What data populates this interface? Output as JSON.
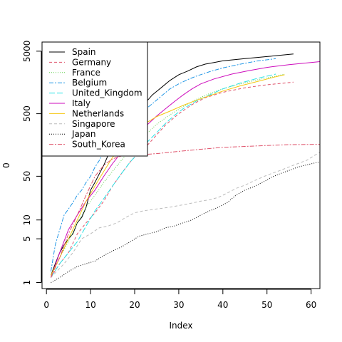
{
  "chart_data": {
    "type": "line",
    "title": "",
    "xlabel": "Index",
    "ylabel": "0",
    "y_scale": "log",
    "xlim": [
      -1,
      62
    ],
    "ylim": [
      0.8,
      7000
    ],
    "x_ticks": [
      0,
      10,
      20,
      30,
      40,
      50,
      60
    ],
    "x_tick_labels": [
      "0",
      "10",
      "20",
      "30",
      "40",
      "50",
      "60"
    ],
    "y_ticks": [
      1,
      5,
      10,
      50,
      500,
      5000
    ],
    "y_tick_labels": [
      "1",
      "5",
      "10",
      "50",
      "500",
      "5000"
    ],
    "legend_position": "top-left",
    "grid": false,
    "series": [
      {
        "name": "Spain",
        "color": "#000000",
        "dash": "",
        "points": [
          [
            1,
            1.3
          ],
          [
            2,
            2
          ],
          [
            3,
            3
          ],
          [
            4,
            4
          ],
          [
            5,
            5
          ],
          [
            6,
            6
          ],
          [
            7,
            9
          ],
          [
            8,
            11
          ],
          [
            9,
            16
          ],
          [
            10,
            30
          ],
          [
            11,
            40
          ],
          [
            12,
            55
          ],
          [
            13,
            75
          ],
          [
            14,
            110
          ],
          [
            15,
            165
          ],
          [
            16,
            230
          ],
          [
            17,
            300
          ],
          [
            18,
            380
          ],
          [
            19,
            470
          ],
          [
            20,
            560
          ],
          [
            21,
            650
          ],
          [
            22,
            740
          ],
          [
            23,
            830
          ],
          [
            24,
            1000
          ],
          [
            26,
            1300
          ],
          [
            28,
            1700
          ],
          [
            30,
            2100
          ],
          [
            32,
            2400
          ],
          [
            34,
            2800
          ],
          [
            36,
            3100
          ],
          [
            38,
            3300
          ],
          [
            40,
            3500
          ],
          [
            45,
            3800
          ],
          [
            50,
            4100
          ],
          [
            56,
            4500
          ]
        ]
      },
      {
        "name": "Germany",
        "color": "#df536b",
        "dash": "4,3",
        "points": [
          [
            1,
            1.2
          ],
          [
            3,
            2
          ],
          [
            5,
            3
          ],
          [
            7,
            6
          ],
          [
            9,
            9
          ],
          [
            11,
            13
          ],
          [
            13,
            20
          ],
          [
            15,
            35
          ],
          [
            17,
            55
          ],
          [
            19,
            85
          ],
          [
            21,
            120
          ],
          [
            23,
            160
          ],
          [
            25,
            230
          ],
          [
            27,
            330
          ],
          [
            30,
            500
          ],
          [
            33,
            700
          ],
          [
            36,
            900
          ],
          [
            40,
            1100
          ],
          [
            45,
            1300
          ],
          [
            50,
            1450
          ],
          [
            56,
            1600
          ]
        ]
      },
      {
        "name": "France",
        "color": "#61d04f",
        "dash": "1,2",
        "points": [
          [
            1,
            1.3
          ],
          [
            3,
            2.5
          ],
          [
            5,
            4.5
          ],
          [
            7,
            9
          ],
          [
            9,
            16
          ],
          [
            11,
            25
          ],
          [
            13,
            40
          ],
          [
            15,
            60
          ],
          [
            17,
            90
          ],
          [
            19,
            130
          ],
          [
            21,
            180
          ],
          [
            23,
            250
          ],
          [
            25,
            340
          ],
          [
            28,
            480
          ],
          [
            31,
            650
          ],
          [
            34,
            850
          ],
          [
            37,
            1050
          ],
          [
            40,
            1250
          ],
          [
            44,
            1500
          ],
          [
            48,
            1750
          ],
          [
            52,
            2000
          ],
          [
            54,
            2150
          ]
        ]
      },
      {
        "name": "Belgium",
        "color": "#2297e6",
        "dash": "6,2,2,2",
        "points": [
          [
            1,
            1.5
          ],
          [
            2,
            4
          ],
          [
            3,
            7
          ],
          [
            4,
            12
          ],
          [
            5,
            15
          ],
          [
            6,
            19
          ],
          [
            7,
            25
          ],
          [
            8,
            30
          ],
          [
            9,
            40
          ],
          [
            10,
            50
          ],
          [
            11,
            70
          ],
          [
            12,
            90
          ],
          [
            13,
            120
          ],
          [
            14,
            150
          ],
          [
            15,
            200
          ],
          [
            16,
            240
          ],
          [
            18,
            330
          ],
          [
            20,
            430
          ],
          [
            22,
            560
          ],
          [
            24,
            720
          ],
          [
            26,
            950
          ],
          [
            28,
            1250
          ],
          [
            30,
            1500
          ],
          [
            32,
            1750
          ],
          [
            34,
            2000
          ],
          [
            37,
            2350
          ],
          [
            40,
            2700
          ],
          [
            44,
            3100
          ],
          [
            48,
            3500
          ],
          [
            52,
            3800
          ]
        ]
      },
      {
        "name": "United_Kingdom",
        "color": "#28e2e5",
        "dash": "8,3",
        "points": [
          [
            1,
            1.2
          ],
          [
            3,
            2
          ],
          [
            5,
            3
          ],
          [
            7,
            4.5
          ],
          [
            9,
            8
          ],
          [
            11,
            14
          ],
          [
            13,
            22
          ],
          [
            15,
            35
          ],
          [
            17,
            55
          ],
          [
            19,
            85
          ],
          [
            21,
            120
          ],
          [
            23,
            180
          ],
          [
            25,
            250
          ],
          [
            27,
            350
          ],
          [
            29,
            470
          ],
          [
            31,
            600
          ],
          [
            34,
            800
          ],
          [
            37,
            1000
          ],
          [
            40,
            1250
          ],
          [
            44,
            1550
          ],
          [
            48,
            1850
          ],
          [
            52,
            2150
          ]
        ]
      },
      {
        "name": "Italy",
        "color": "#cd0bbc",
        "dash": "",
        "points": [
          [
            1,
            1.2
          ],
          [
            3,
            3
          ],
          [
            5,
            7
          ],
          [
            7,
            12
          ],
          [
            9,
            20
          ],
          [
            11,
            30
          ],
          [
            13,
            50
          ],
          [
            15,
            80
          ],
          [
            17,
            120
          ],
          [
            19,
            180
          ],
          [
            21,
            250
          ],
          [
            23,
            340
          ],
          [
            25,
            460
          ],
          [
            27,
            600
          ],
          [
            29,
            780
          ],
          [
            31,
            1000
          ],
          [
            33,
            1250
          ],
          [
            35,
            1500
          ],
          [
            38,
            1800
          ],
          [
            42,
            2150
          ],
          [
            46,
            2450
          ],
          [
            50,
            2750
          ],
          [
            55,
            3050
          ],
          [
            62,
            3400
          ]
        ]
      },
      {
        "name": "Netherlands",
        "color": "#f5c710",
        "dash": "",
        "points": [
          [
            1,
            1.3
          ],
          [
            3,
            2.5
          ],
          [
            5,
            5
          ],
          [
            7,
            10
          ],
          [
            9,
            20
          ],
          [
            11,
            35
          ],
          [
            13,
            60
          ],
          [
            15,
            100
          ],
          [
            17,
            150
          ],
          [
            19,
            220
          ],
          [
            21,
            300
          ],
          [
            23,
            370
          ],
          [
            25,
            450
          ],
          [
            28,
            550
          ],
          [
            31,
            680
          ],
          [
            34,
            820
          ],
          [
            37,
            970
          ],
          [
            40,
            1150
          ],
          [
            44,
            1400
          ],
          [
            48,
            1650
          ],
          [
            52,
            1950
          ],
          [
            54,
            2100
          ]
        ]
      },
      {
        "name": "Singapore",
        "color": "#bbbbbb",
        "dash": "4,3",
        "points": [
          [
            1,
            1.2
          ],
          [
            4,
            2
          ],
          [
            6,
            3
          ],
          [
            8,
            5
          ],
          [
            10,
            6
          ],
          [
            12,
            7.5
          ],
          [
            14,
            8
          ],
          [
            16,
            9
          ],
          [
            18,
            11
          ],
          [
            20,
            13
          ],
          [
            22,
            14
          ],
          [
            25,
            15
          ],
          [
            28,
            16
          ],
          [
            30,
            17
          ],
          [
            32,
            18
          ],
          [
            35,
            20
          ],
          [
            37,
            21
          ],
          [
            39,
            23
          ],
          [
            41,
            27
          ],
          [
            43,
            32
          ],
          [
            45,
            36
          ],
          [
            47,
            42
          ],
          [
            50,
            52
          ],
          [
            53,
            62
          ],
          [
            56,
            75
          ],
          [
            59,
            90
          ],
          [
            61,
            110
          ],
          [
            62,
            120
          ]
        ]
      },
      {
        "name": "Japan",
        "color": "#000000",
        "dash": "1,2",
        "points": [
          [
            1,
            1
          ],
          [
            3,
            1.2
          ],
          [
            5,
            1.5
          ],
          [
            7,
            1.8
          ],
          [
            9,
            2
          ],
          [
            11,
            2.2
          ],
          [
            13,
            2.7
          ],
          [
            15,
            3.2
          ],
          [
            17,
            3.7
          ],
          [
            19,
            4.5
          ],
          [
            21,
            5.5
          ],
          [
            23,
            6
          ],
          [
            25,
            6.5
          ],
          [
            27,
            7.5
          ],
          [
            29,
            8
          ],
          [
            31,
            9
          ],
          [
            33,
            10
          ],
          [
            35,
            12
          ],
          [
            37,
            14
          ],
          [
            39,
            16
          ],
          [
            41,
            19
          ],
          [
            43,
            25
          ],
          [
            45,
            30
          ],
          [
            47,
            34
          ],
          [
            49,
            40
          ],
          [
            51,
            48
          ],
          [
            53,
            55
          ],
          [
            55,
            62
          ],
          [
            57,
            70
          ],
          [
            59,
            76
          ],
          [
            61,
            82
          ],
          [
            62,
            85
          ]
        ]
      },
      {
        "name": "South_Korea",
        "color": "#df536b",
        "dash": "6,2,2,2",
        "points": [
          [
            1,
            1.2
          ],
          [
            3,
            2.5
          ],
          [
            5,
            6
          ],
          [
            7,
            12
          ],
          [
            9,
            25
          ],
          [
            11,
            50
          ],
          [
            13,
            75
          ],
          [
            15,
            95
          ],
          [
            17,
            105
          ],
          [
            19,
            108
          ],
          [
            21,
            110
          ],
          [
            25,
            115
          ],
          [
            30,
            125
          ],
          [
            35,
            135
          ],
          [
            40,
            145
          ],
          [
            45,
            150
          ],
          [
            50,
            155
          ],
          [
            55,
            160
          ],
          [
            62,
            162
          ]
        ]
      }
    ]
  }
}
